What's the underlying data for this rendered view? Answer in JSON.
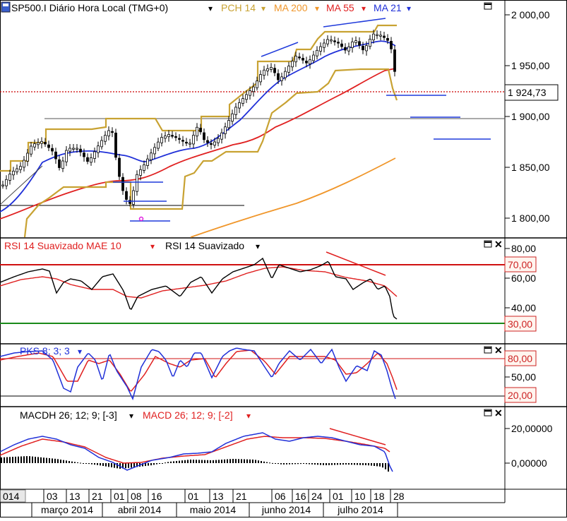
{
  "main": {
    "symbol": "SP500.I Diário Hora Local (TMG+0)",
    "indicators": [
      {
        "label": "PCH 14",
        "color": "#c8a232"
      },
      {
        "label": "MA 200",
        "color": "#f0962a"
      },
      {
        "label": "MA 55",
        "color": "#e02020"
      },
      {
        "label": "MA 21",
        "color": "#2030d8"
      }
    ],
    "y_ticks": [
      "2 000,00",
      "1 950,00",
      "1 900,00",
      "1 850,00",
      "1 800,00"
    ],
    "last_price": "1 924,73"
  },
  "rsi": {
    "title_a": "RSI 14 Suavizado MAE 10",
    "title_b": "RSI 14 Suavizado",
    "y_ticks": [
      "80,00",
      "60,00",
      "40,00"
    ],
    "upper_level": "70,00",
    "lower_level": "30,00"
  },
  "pks": {
    "title": "PKS 8; 3; 3",
    "y_ticks": [
      "50,00"
    ],
    "upper_level": "80,00",
    "lower_level": "20,00"
  },
  "macd": {
    "title_a": "MACDH 26; 12; 9; [-3]",
    "title_b": "MACD 26; 12; 9; [-2]",
    "y_ticks": [
      "20,00000",
      "0,00000"
    ]
  },
  "x_axis": {
    "days": [
      "014",
      "03",
      "13",
      "21",
      "01",
      "08",
      "16",
      "01",
      "13",
      "21",
      "06",
      "16",
      "24",
      "01",
      "10",
      "18",
      "28"
    ],
    "months": [
      "março 2014",
      "abril 2014",
      "maio 2014",
      "junho 2014",
      "julho 2014"
    ]
  },
  "colors": {
    "price_ref_line": "#cc0000",
    "rsi_upper_line": "#d01010",
    "rsi_lower_line": "#1a8a1a",
    "label_box_border": "#cc2222",
    "label_box_bg": "#fff5ef"
  },
  "icons": [
    "maximize-icon",
    "close-icon",
    "dropdown-arrow-icon"
  ],
  "chart_data": {
    "type": "line",
    "title": "SP500.I Diário Hora Local (TMG+0)",
    "series": [
      {
        "name": "MA 200",
        "values": [
          1780,
          1800,
          1818,
          1835,
          1849,
          1860
        ]
      },
      {
        "name": "MA 55",
        "values": [
          1812,
          1836,
          1840,
          1862,
          1875,
          1910,
          1935,
          1948
        ]
      },
      {
        "name": "MA 21",
        "values": [
          1810,
          1848,
          1862,
          1858,
          1870,
          1900,
          1950,
          1972,
          1978,
          1965
        ]
      }
    ],
    "ylim": [
      1780,
      2010
    ],
    "last_value": 1924.73,
    "rsi_levels": [
      70,
      30
    ],
    "stochastic_levels": [
      80,
      20
    ]
  }
}
